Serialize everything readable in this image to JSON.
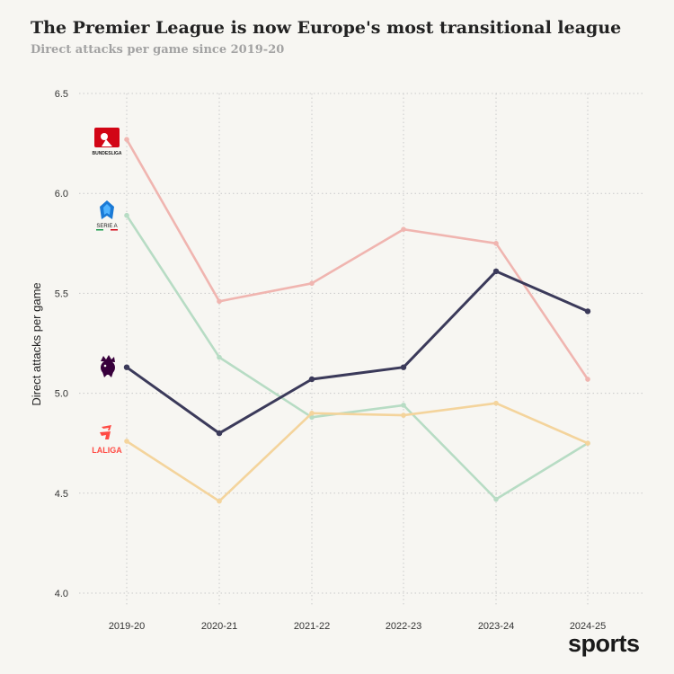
{
  "header": {
    "title": "The Premier League is now Europe's most transitional league",
    "subtitle": "Direct attacks per game since 2019-20"
  },
  "branding": {
    "text": "sports"
  },
  "logos": {
    "bundesliga": {
      "text": "BUNDESLIGA",
      "icon": "bundesliga-logo",
      "color": "#d20515"
    },
    "serie_a": {
      "text": "SERIE A",
      "icon": "serie-a-logo",
      "color": "#1a7ad6"
    },
    "premier_league": {
      "icon": "premier-league-lion-logo",
      "color": "#38003c"
    },
    "laliga": {
      "text": "LALIGA",
      "icon": "laliga-logo",
      "color": "#ff4b44"
    }
  },
  "chart_data": {
    "type": "line",
    "title": "The Premier League is now Europe's most transitional league",
    "subtitle": "Direct attacks per game since 2019-20",
    "xlabel": "",
    "ylabel": "Direct attacks per game",
    "categories": [
      "2019-20",
      "2020-21",
      "2021-22",
      "2022-23",
      "2023-24",
      "2024-25"
    ],
    "ylim": [
      4.0,
      6.5
    ],
    "yticks": [
      "4.0",
      "4.5",
      "5.0",
      "5.5",
      "6.0",
      "6.5"
    ],
    "grid": "dotted",
    "legend": "logos at left",
    "series": [
      {
        "key": "bundesliga",
        "values": [
          6.27,
          5.46,
          5.55,
          5.82,
          5.75,
          5.07
        ],
        "color": "#f0b5b0"
      },
      {
        "key": "serie_a",
        "values": [
          5.89,
          5.18,
          4.88,
          4.94,
          4.47,
          4.75
        ],
        "color": "#b7dcc4"
      },
      {
        "key": "laliga",
        "values": [
          4.76,
          4.46,
          4.9,
          4.89,
          4.95,
          4.75
        ],
        "color": "#f4d49c"
      },
      {
        "key": "premier_league",
        "values": [
          5.13,
          4.8,
          5.07,
          5.13,
          5.61,
          5.41
        ],
        "color": "#3b3a5a"
      }
    ]
  }
}
